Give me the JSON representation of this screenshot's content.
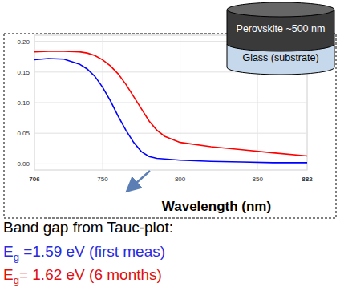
{
  "chart_data": {
    "type": "line",
    "x_label": "Wavelength (nm)",
    "x": [
      706,
      715,
      725,
      735,
      740,
      745,
      750,
      755,
      760,
      765,
      770,
      775,
      780,
      785,
      790,
      800,
      820,
      840,
      860,
      882
    ],
    "series": [
      {
        "color": "#0000ff",
        "values": [
          0.17,
          0.172,
          0.171,
          0.163,
          0.155,
          0.143,
          0.125,
          0.103,
          0.078,
          0.055,
          0.035,
          0.02,
          0.012,
          0.009,
          0.008,
          0.006,
          0.004,
          0.003,
          0.002,
          0.002
        ]
      },
      {
        "color": "#ff0000",
        "values": [
          0.183,
          0.184,
          0.184,
          0.183,
          0.181,
          0.177,
          0.17,
          0.16,
          0.147,
          0.13,
          0.11,
          0.09,
          0.07,
          0.055,
          0.045,
          0.035,
          0.028,
          0.023,
          0.018,
          0.013
        ]
      }
    ],
    "xlim": [
      706,
      882
    ],
    "xticks": [
      706,
      750,
      800,
      850,
      882
    ],
    "ylim": [
      -0.01,
      0.21
    ],
    "yticks": [
      {
        "value": 0,
        "label": "0.00"
      },
      {
        "value": 0.05,
        "label": "0.05"
      },
      {
        "value": 0.1,
        "label": "0.10"
      },
      {
        "value": 0.15,
        "label": "0.15"
      },
      {
        "value": 0.2,
        "label": "0.20"
      }
    ],
    "grid": true
  },
  "inset": {
    "layers": [
      "Perovskite ~500 nm",
      "Glass (substrate)"
    ]
  },
  "caption": {
    "title": "Band gap from Tauc-plot:",
    "lines": [
      {
        "symbol": "E",
        "subscript": "g",
        "text": " =1.59 eV (first meas)",
        "color": "#2a2ae0"
      },
      {
        "symbol": "E",
        "subscript": "g",
        "text": "= 1.62 eV (6 months)",
        "color": "#e01010"
      }
    ]
  }
}
